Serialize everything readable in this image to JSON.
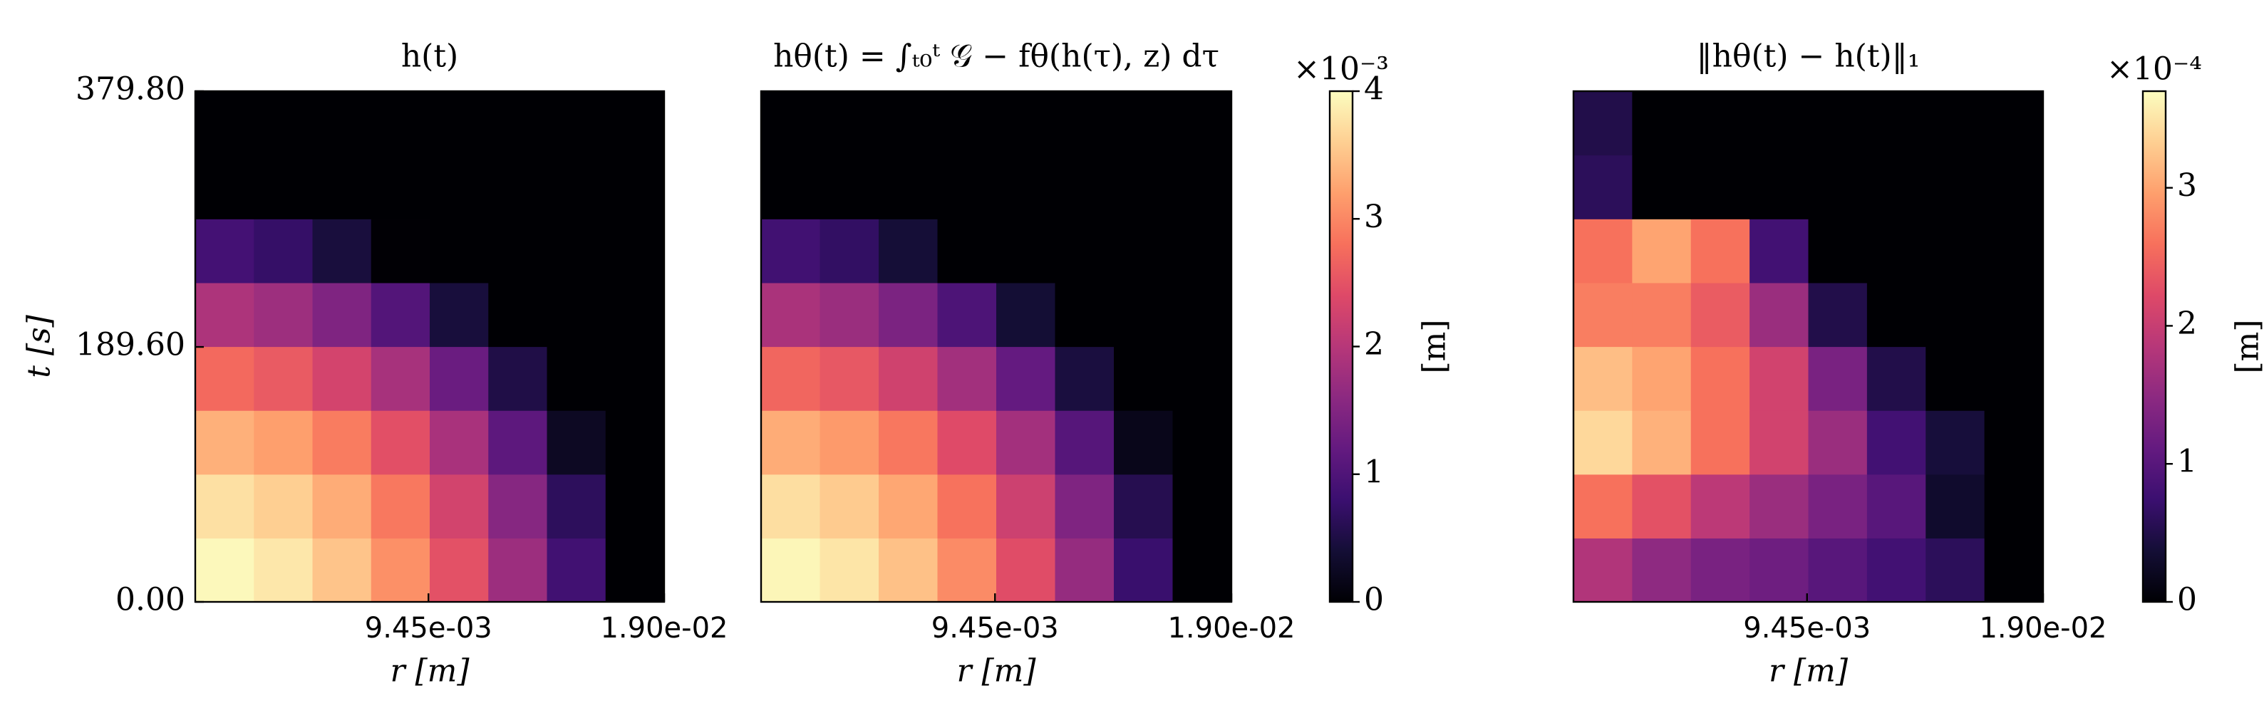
{
  "chart_data": [
    {
      "type": "heatmap",
      "title": "h(t)",
      "xlabel": "r [m]",
      "ylabel": "t [s]",
      "colormap": "magma",
      "xlim": [
        0,
        0.019
      ],
      "ylim": [
        0,
        379.8
      ],
      "clim": [
        0,
        4
      ],
      "xticks": [
        {
          "value": 0.00945,
          "label": "9.45e-03"
        },
        {
          "value": 0.019,
          "label": "1.90e-02"
        }
      ],
      "yticks": [
        {
          "value": 0,
          "label": "0.00"
        },
        {
          "value": 189.6,
          "label": "189.60"
        },
        {
          "value": 379.8,
          "label": "379.80"
        }
      ],
      "z": [
        [
          3.96,
          3.81,
          3.51,
          3.07,
          2.48,
          1.75,
          0.86,
          0
        ],
        [
          3.75,
          3.6,
          3.31,
          2.87,
          2.28,
          1.54,
          0.66,
          0
        ],
        [
          3.34,
          3.2,
          2.9,
          2.46,
          1.87,
          1.13,
          0.25,
          0
        ],
        [
          2.73,
          2.58,
          2.29,
          1.85,
          1.26,
          0.52,
          0,
          0
        ],
        [
          1.91,
          1.76,
          1.47,
          1.03,
          0.44,
          0,
          0,
          0
        ],
        [
          0.89,
          0.74,
          0.45,
          0.01,
          0,
          0,
          0,
          0
        ],
        [
          0,
          0,
          0,
          0,
          0,
          0,
          0,
          0
        ],
        [
          0,
          0,
          0,
          0,
          0,
          0,
          0,
          0
        ]
      ]
    },
    {
      "type": "heatmap",
      "title": "hθ(t) = ∫ₜ₀ᵗ 𝒢 − fθ(h(τ), z) dτ",
      "xlabel": "r [m]",
      "colormap": "magma",
      "xlim": [
        0,
        0.019
      ],
      "ylim": [
        0,
        379.8
      ],
      "clim": [
        0,
        4
      ],
      "xticks": [
        {
          "value": 0.00945,
          "label": "9.45e-03"
        },
        {
          "value": 0.019,
          "label": "1.90e-02"
        }
      ],
      "colorbar": {
        "label": "[m]",
        "offset_label": "×10⁻³",
        "ticks": [
          0,
          1,
          2,
          3,
          4
        ]
      },
      "z": [
        [
          3.94,
          3.79,
          3.48,
          3.03,
          2.43,
          1.68,
          0.78,
          0
        ],
        [
          3.73,
          3.57,
          3.27,
          2.82,
          2.22,
          1.47,
          0.58,
          0
        ],
        [
          3.31,
          3.16,
          2.86,
          2.41,
          1.81,
          1.06,
          0.18,
          0
        ],
        [
          2.7,
          2.55,
          2.25,
          1.8,
          1.2,
          0.46,
          0,
          0
        ],
        [
          1.88,
          1.73,
          1.43,
          0.98,
          0.39,
          0,
          0,
          0
        ],
        [
          0.86,
          0.71,
          0.41,
          0,
          0,
          0,
          0,
          0
        ],
        [
          0,
          0,
          0,
          0,
          0,
          0,
          0,
          0
        ],
        [
          0,
          0,
          0,
          0,
          0,
          0,
          0,
          0
        ]
      ]
    },
    {
      "type": "heatmap",
      "title": "‖hθ(t) − h(t)‖₁",
      "xlabel": "r [m]",
      "colormap": "magma",
      "xlim": [
        0,
        0.019
      ],
      "ylim": [
        0,
        379.8
      ],
      "clim": [
        0,
        3.7
      ],
      "xticks": [
        {
          "value": 0.00945,
          "label": "9.45e-03"
        },
        {
          "value": 0.019,
          "label": "1.90e-02"
        }
      ],
      "colorbar": {
        "label": "[m]",
        "offset_label": "×10⁻⁴",
        "ticks": [
          0,
          1,
          2,
          3
        ]
      },
      "z": [
        [
          1.8,
          1.5,
          1.3,
          1.2,
          1.0,
          0.8,
          0.6,
          0
        ],
        [
          2.6,
          2.3,
          1.9,
          1.6,
          1.3,
          1.0,
          0.3,
          0
        ],
        [
          3.4,
          3.1,
          2.6,
          2.1,
          1.6,
          0.8,
          0.4,
          0
        ],
        [
          3.2,
          3.0,
          2.6,
          2.1,
          1.3,
          0.5,
          0,
          0
        ],
        [
          2.7,
          2.7,
          2.4,
          1.6,
          0.5,
          0,
          0,
          0
        ],
        [
          2.6,
          3.0,
          2.6,
          0.8,
          0,
          0,
          0,
          0
        ],
        [
          0.6,
          0,
          0,
          0,
          0,
          0,
          0,
          0
        ],
        [
          0.5,
          0,
          0,
          0,
          0,
          0,
          0,
          0
        ]
      ]
    }
  ]
}
